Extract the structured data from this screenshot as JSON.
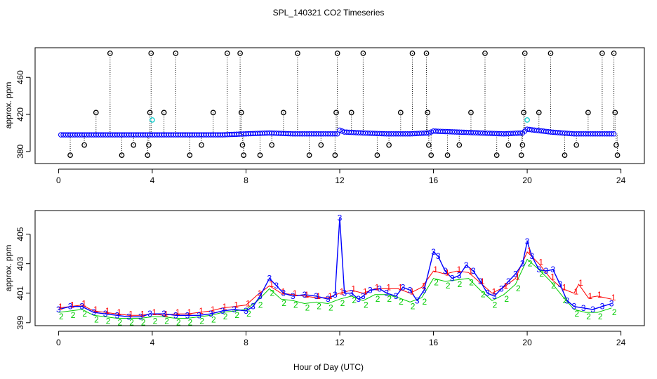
{
  "title": "SPL_140321  CO2 Timeseries",
  "xlabel": "Hour of Day (UTC)",
  "colors": {
    "primary": "#0000ff",
    "secondary": "#ff0000",
    "tertiary": "#00cc00",
    "flag": "#00cccc",
    "outlier": "#000000"
  },
  "chart_data": [
    {
      "type": "scatter",
      "panel": "top",
      "ylabel": "approx. ppm",
      "xlim": [
        -1,
        25
      ],
      "ylim": [
        367,
        492
      ],
      "xticks": [
        0,
        4,
        8,
        12,
        16,
        20,
        24
      ],
      "xtick_labels": [
        "0",
        "4",
        "8",
        "12",
        "16",
        "20",
        "24"
      ],
      "yticks": [
        380,
        420,
        460
      ],
      "ytick_labels": [
        "380",
        "420",
        "460"
      ],
      "baseline_points": [
        [
          0.1,
          398
        ],
        [
          1.0,
          398
        ],
        [
          2.0,
          398
        ],
        [
          3.0,
          398
        ],
        [
          4.0,
          398
        ],
        [
          5.0,
          398
        ],
        [
          6.0,
          398
        ],
        [
          7.0,
          398
        ],
        [
          8.0,
          399
        ],
        [
          9.0,
          400
        ],
        [
          10.0,
          399
        ],
        [
          11.0,
          399
        ],
        [
          11.9,
          399
        ],
        [
          12.0,
          403
        ],
        [
          12.2,
          401
        ],
        [
          13.0,
          400
        ],
        [
          14.0,
          399
        ],
        [
          15.0,
          399
        ],
        [
          15.8,
          400
        ],
        [
          16.0,
          402
        ],
        [
          17.0,
          401
        ],
        [
          18.0,
          400
        ],
        [
          19.0,
          399
        ],
        [
          19.8,
          400
        ],
        [
          20.0,
          404
        ],
        [
          21.0,
          401
        ],
        [
          22.0,
          399
        ],
        [
          23.0,
          399
        ],
        [
          23.7,
          399
        ]
      ],
      "outliers": [
        {
          "x": 0.5,
          "y": 376
        },
        {
          "x": 1.1,
          "y": 387
        },
        {
          "x": 1.6,
          "y": 422
        },
        {
          "x": 2.2,
          "y": 486
        },
        {
          "x": 2.7,
          "y": 376
        },
        {
          "x": 3.2,
          "y": 387
        },
        {
          "x": 3.8,
          "y": 376
        },
        {
          "x": 3.85,
          "y": 387
        },
        {
          "x": 3.9,
          "y": 422
        },
        {
          "x": 3.95,
          "y": 486
        },
        {
          "x": 4.5,
          "y": 422
        },
        {
          "x": 5.0,
          "y": 486
        },
        {
          "x": 5.6,
          "y": 376
        },
        {
          "x": 6.1,
          "y": 387
        },
        {
          "x": 6.6,
          "y": 422
        },
        {
          "x": 7.2,
          "y": 486
        },
        {
          "x": 7.75,
          "y": 486
        },
        {
          "x": 7.8,
          "y": 422
        },
        {
          "x": 7.85,
          "y": 387
        },
        {
          "x": 7.9,
          "y": 376
        },
        {
          "x": 8.6,
          "y": 376
        },
        {
          "x": 9.1,
          "y": 387
        },
        {
          "x": 9.6,
          "y": 422
        },
        {
          "x": 10.2,
          "y": 486
        },
        {
          "x": 10.7,
          "y": 376
        },
        {
          "x": 11.2,
          "y": 387
        },
        {
          "x": 11.8,
          "y": 376
        },
        {
          "x": 11.85,
          "y": 422
        },
        {
          "x": 11.9,
          "y": 486
        },
        {
          "x": 12.5,
          "y": 422
        },
        {
          "x": 13.0,
          "y": 486
        },
        {
          "x": 13.6,
          "y": 376
        },
        {
          "x": 14.1,
          "y": 387
        },
        {
          "x": 14.6,
          "y": 422
        },
        {
          "x": 15.1,
          "y": 486
        },
        {
          "x": 15.7,
          "y": 486
        },
        {
          "x": 15.75,
          "y": 422
        },
        {
          "x": 15.8,
          "y": 387
        },
        {
          "x": 15.9,
          "y": 376
        },
        {
          "x": 16.6,
          "y": 376
        },
        {
          "x": 17.1,
          "y": 387
        },
        {
          "x": 17.6,
          "y": 422
        },
        {
          "x": 18.2,
          "y": 486
        },
        {
          "x": 18.7,
          "y": 376
        },
        {
          "x": 19.2,
          "y": 387
        },
        {
          "x": 19.75,
          "y": 376
        },
        {
          "x": 19.8,
          "y": 387
        },
        {
          "x": 19.85,
          "y": 422
        },
        {
          "x": 19.9,
          "y": 486
        },
        {
          "x": 20.5,
          "y": 422
        },
        {
          "x": 21.0,
          "y": 486
        },
        {
          "x": 21.6,
          "y": 376
        },
        {
          "x": 22.1,
          "y": 387
        },
        {
          "x": 22.6,
          "y": 422
        },
        {
          "x": 23.2,
          "y": 486
        },
        {
          "x": 23.7,
          "y": 486
        },
        {
          "x": 23.75,
          "y": 422
        },
        {
          "x": 23.8,
          "y": 387
        },
        {
          "x": 23.85,
          "y": 376
        }
      ],
      "flags": [
        {
          "x": 4.0,
          "y": 414
        },
        {
          "x": 20.0,
          "y": 414
        }
      ]
    },
    {
      "type": "line",
      "panel": "bottom",
      "ylabel": "approx. ppm",
      "xlim": [
        -1,
        25
      ],
      "ylim": [
        398.8,
        406.6
      ],
      "xticks": [
        0,
        4,
        8,
        12,
        16,
        20,
        24
      ],
      "xtick_labels": [
        "0",
        "4",
        "8",
        "12",
        "16",
        "20",
        "24"
      ],
      "yticks": [
        399,
        401,
        403,
        405
      ],
      "ytick_labels": [
        "399",
        "401",
        "403",
        "405"
      ],
      "series": [
        {
          "name": "3",
          "marker": "3",
          "points": [
            [
              0,
              399.9
            ],
            [
              0.5,
              400.1
            ],
            [
              1,
              400.1
            ],
            [
              1.5,
              399.7
            ],
            [
              2,
              399.6
            ],
            [
              2.5,
              399.5
            ],
            [
              3,
              399.4
            ],
            [
              3.5,
              399.4
            ],
            [
              3.9,
              399.6
            ],
            [
              4.5,
              399.6
            ],
            [
              5,
              399.5
            ],
            [
              5.5,
              399.5
            ],
            [
              6,
              399.5
            ],
            [
              6.5,
              399.6
            ],
            [
              7,
              399.8
            ],
            [
              7.5,
              399.9
            ],
            [
              8,
              399.8
            ],
            [
              8.3,
              400.1
            ],
            [
              8.6,
              400.8
            ],
            [
              9,
              402.0
            ],
            [
              9.3,
              401.5
            ],
            [
              9.6,
              401.0
            ],
            [
              10,
              400.8
            ],
            [
              10.5,
              400.9
            ],
            [
              11,
              400.8
            ],
            [
              11.5,
              400.6
            ],
            [
              11.8,
              400.9
            ],
            [
              12,
              406.1
            ],
            [
              12.2,
              401.0
            ],
            [
              12.5,
              401.0
            ],
            [
              12.8,
              400.6
            ],
            [
              13,
              400.8
            ],
            [
              13.3,
              401.2
            ],
            [
              13.7,
              401.3
            ],
            [
              14,
              401.0
            ],
            [
              14.4,
              400.8
            ],
            [
              14.7,
              401.4
            ],
            [
              15,
              401.2
            ],
            [
              15.3,
              400.5
            ],
            [
              15.6,
              401.2
            ],
            [
              16,
              403.8
            ],
            [
              16.2,
              403.5
            ],
            [
              16.5,
              402.5
            ],
            [
              16.8,
              402.0
            ],
            [
              17.1,
              402.2
            ],
            [
              17.4,
              402.9
            ],
            [
              17.7,
              402.5
            ],
            [
              18,
              401.8
            ],
            [
              18.3,
              401.0
            ],
            [
              18.6,
              400.8
            ],
            [
              18.9,
              401.3
            ],
            [
              19.2,
              401.8
            ],
            [
              19.5,
              402.3
            ],
            [
              19.8,
              403.0
            ],
            [
              20,
              404.5
            ],
            [
              20.2,
              403.5
            ],
            [
              20.5,
              402.6
            ],
            [
              20.8,
              402.5
            ],
            [
              21.1,
              402.6
            ],
            [
              21.4,
              401.6
            ],
            [
              21.7,
              400.5
            ],
            [
              22,
              400.1
            ],
            [
              22.4,
              400.0
            ],
            [
              22.8,
              399.9
            ],
            [
              23.2,
              400.1
            ],
            [
              23.6,
              400.3
            ]
          ]
        },
        {
          "name": "1",
          "marker": "1",
          "points": [
            [
              0,
              400.0
            ],
            [
              0.5,
              400.1
            ],
            [
              1,
              400.2
            ],
            [
              1.5,
              399.8
            ],
            [
              2,
              399.7
            ],
            [
              2.5,
              399.6
            ],
            [
              3,
              399.5
            ],
            [
              3.5,
              399.5
            ],
            [
              4,
              399.6
            ],
            [
              4.5,
              399.5
            ],
            [
              5,
              399.6
            ],
            [
              5.5,
              399.6
            ],
            [
              6,
              399.7
            ],
            [
              6.5,
              399.8
            ],
            [
              7,
              400.0
            ],
            [
              7.5,
              400.1
            ],
            [
              8,
              400.2
            ],
            [
              8.5,
              400.9
            ],
            [
              9,
              401.5
            ],
            [
              9.5,
              401.0
            ],
            [
              10,
              400.9
            ],
            [
              10.5,
              400.8
            ],
            [
              11,
              400.7
            ],
            [
              11.5,
              400.7
            ],
            [
              12,
              401.0
            ],
            [
              12.5,
              401.2
            ],
            [
              13,
              401.0
            ],
            [
              13.5,
              401.3
            ],
            [
              14,
              401.3
            ],
            [
              14.5,
              401.3
            ],
            [
              15,
              401.0
            ],
            [
              15.5,
              401.4
            ],
            [
              16,
              402.5
            ],
            [
              16.5,
              402.3
            ],
            [
              17,
              402.5
            ],
            [
              17.5,
              402.4
            ],
            [
              18,
              401.7
            ],
            [
              18.5,
              401.0
            ],
            [
              19,
              401.4
            ],
            [
              19.5,
              402.0
            ],
            [
              20,
              403.8
            ],
            [
              20.5,
              403.0
            ],
            [
              21,
              402.0
            ],
            [
              21.5,
              401.3
            ],
            [
              22,
              401.0
            ],
            [
              22.2,
              401.6
            ],
            [
              22.6,
              400.7
            ],
            [
              23,
              400.8
            ],
            [
              23.6,
              400.6
            ]
          ]
        },
        {
          "name": "2",
          "marker": "2",
          "points": [
            [
              0,
              399.7
            ],
            [
              0.5,
              399.8
            ],
            [
              1,
              399.9
            ],
            [
              1.5,
              399.5
            ],
            [
              2,
              399.4
            ],
            [
              2.5,
              399.3
            ],
            [
              3,
              399.3
            ],
            [
              3.5,
              399.3
            ],
            [
              4,
              399.4
            ],
            [
              4.5,
              399.4
            ],
            [
              5,
              399.3
            ],
            [
              5.5,
              399.3
            ],
            [
              6,
              399.4
            ],
            [
              6.5,
              399.5
            ],
            [
              7,
              399.7
            ],
            [
              7.5,
              399.8
            ],
            [
              8,
              399.9
            ],
            [
              8.5,
              400.5
            ],
            [
              9,
              401.3
            ],
            [
              9.5,
              400.6
            ],
            [
              10,
              400.5
            ],
            [
              10.5,
              400.3
            ],
            [
              11,
              400.4
            ],
            [
              11.5,
              400.3
            ],
            [
              12,
              400.6
            ],
            [
              12.5,
              400.8
            ],
            [
              13,
              400.5
            ],
            [
              13.5,
              400.9
            ],
            [
              14,
              400.9
            ],
            [
              14.5,
              400.7
            ],
            [
              15,
              400.4
            ],
            [
              15.5,
              400.7
            ],
            [
              16,
              402.0
            ],
            [
              16.5,
              401.8
            ],
            [
              17,
              401.9
            ],
            [
              17.5,
              402.0
            ],
            [
              18,
              401.2
            ],
            [
              18.5,
              400.5
            ],
            [
              19,
              400.9
            ],
            [
              19.5,
              401.6
            ],
            [
              20,
              403.3
            ],
            [
              20.5,
              402.6
            ],
            [
              21,
              401.8
            ],
            [
              21.5,
              400.8
            ],
            [
              22,
              399.9
            ],
            [
              22.5,
              399.7
            ],
            [
              23,
              399.7
            ],
            [
              23.6,
              400.0
            ]
          ]
        }
      ]
    }
  ]
}
